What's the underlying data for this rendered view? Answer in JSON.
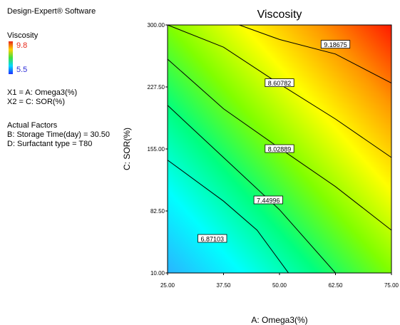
{
  "software": "Design-Expert® Software",
  "legend": {
    "response": "Viscosity",
    "high": "9.8",
    "low": "5.5",
    "high_color": "#e8281a",
    "low_color": "#2a2ad8"
  },
  "factors": {
    "x1": "X1 = A: Omega3(%)",
    "x2": "X2 = C: SOR(%)"
  },
  "actual_factors": {
    "heading": "Actual Factors",
    "b": "B: Storage Time(day) = 30.50",
    "d": "D: Surfactant type = T80"
  },
  "chart_data": {
    "type": "heatmap",
    "subtype": "contour",
    "title": "Viscosity",
    "xlabel": "A: Omega3(%)",
    "ylabel": "C: SOR(%)",
    "xlim": [
      25,
      75
    ],
    "ylim": [
      10,
      300
    ],
    "x_ticks": [
      "25.00",
      "37.50",
      "50.00",
      "62.50",
      "75.00"
    ],
    "y_ticks": [
      "10.00",
      "82.50",
      "155.00",
      "227.50",
      "300.00"
    ],
    "color_range": [
      5.5,
      9.8
    ],
    "colorscale": [
      "#2ab4ff",
      "#00ffff",
      "#00ff80",
      "#80ff00",
      "#ffff00",
      "#ff9900",
      "#ff1a00"
    ],
    "contour_levels": [
      {
        "label": "6.87103",
        "points": [
          [
            25,
            142
          ],
          [
            37.5,
            94
          ],
          [
            45,
            60
          ],
          [
            52,
            10
          ]
        ]
      },
      {
        "label": "7.44996",
        "points": [
          [
            25,
            206
          ],
          [
            37.5,
            145
          ],
          [
            50,
            84
          ],
          [
            62.5,
            10
          ]
        ]
      },
      {
        "label": "8.02889",
        "points": [
          [
            25,
            260
          ],
          [
            37.5,
            202
          ],
          [
            50,
            156
          ],
          [
            62.5,
            111
          ],
          [
            75,
            60
          ]
        ]
      },
      {
        "label": "8.60782",
        "points": [
          [
            25,
            300
          ],
          [
            37.5,
            274
          ],
          [
            50,
            231
          ],
          [
            62.5,
            190
          ],
          [
            75,
            145
          ]
        ]
      },
      {
        "label": "9.18675",
        "points": [
          [
            41,
            300
          ],
          [
            50,
            283
          ],
          [
            62.5,
            266
          ],
          [
            75,
            232
          ]
        ]
      }
    ],
    "contour_labels": [
      {
        "text": "6.87103",
        "x": 35,
        "y": 50
      },
      {
        "text": "7.44996",
        "x": 47.5,
        "y": 95
      },
      {
        "text": "8.02889",
        "x": 50,
        "y": 155
      },
      {
        "text": "8.60782",
        "x": 50,
        "y": 232
      },
      {
        "text": "9.18675",
        "x": 62.5,
        "y": 277
      }
    ]
  }
}
